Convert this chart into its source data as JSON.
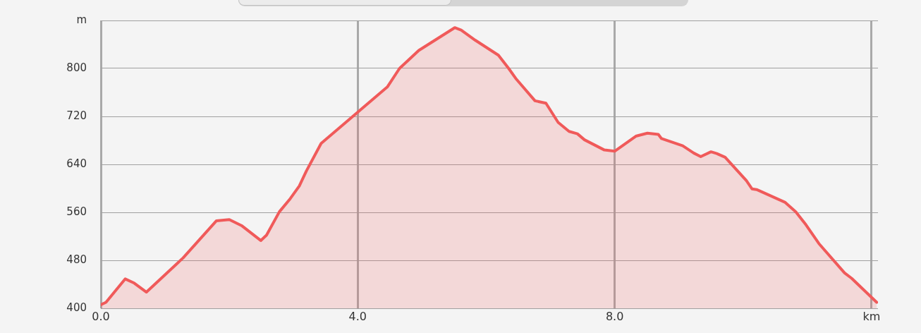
{
  "chart_data": {
    "type": "area",
    "xlim": [
      0,
      12.1
    ],
    "ylim": [
      400,
      880
    ],
    "xticks": [
      {
        "value": 0,
        "label": "0.0"
      },
      {
        "value": 4,
        "label": "4.0"
      },
      {
        "value": 8,
        "label": "8.0"
      },
      {
        "value": 12,
        "label": "km"
      }
    ],
    "yticks": [
      400,
      480,
      560,
      640,
      720,
      800,
      {
        "value": 880,
        "label": "m"
      }
    ],
    "grid": true,
    "legend": false,
    "series": [
      {
        "color": "#f05a5a",
        "x": [
          0,
          0.08,
          0.38,
          0.52,
          0.71,
          1.28,
          1.8,
          2.0,
          2.19,
          2.49,
          2.58,
          2.78,
          2.95,
          3.09,
          3.2,
          3.43,
          4.0,
          4.46,
          4.65,
          4.95,
          5.51,
          5.61,
          5.83,
          6.19,
          6.35,
          6.47,
          6.76,
          6.93,
          7.12,
          7.29,
          7.42,
          7.53,
          7.84,
          8.0,
          8.33,
          8.51,
          8.68,
          8.73,
          9.06,
          9.23,
          9.34,
          9.5,
          9.59,
          9.72,
          10.05,
          10.14,
          10.21,
          10.65,
          10.82,
          10.98,
          11.18,
          11.58,
          11.69,
          12.08
        ],
        "values": [
          406,
          410,
          449,
          442,
          427,
          484,
          546,
          548,
          538,
          513,
          522,
          561,
          583,
          604,
          629,
          675,
          727,
          769,
          800,
          830,
          868,
          864,
          847,
          822,
          800,
          782,
          746,
          742,
          710,
          695,
          691,
          681,
          664,
          662,
          687,
          692,
          690,
          683,
          671,
          659,
          653,
          661,
          658,
          652,
          613,
          599,
          598,
          577,
          561,
          539,
          508,
          459,
          450,
          410
        ]
      }
    ]
  }
}
